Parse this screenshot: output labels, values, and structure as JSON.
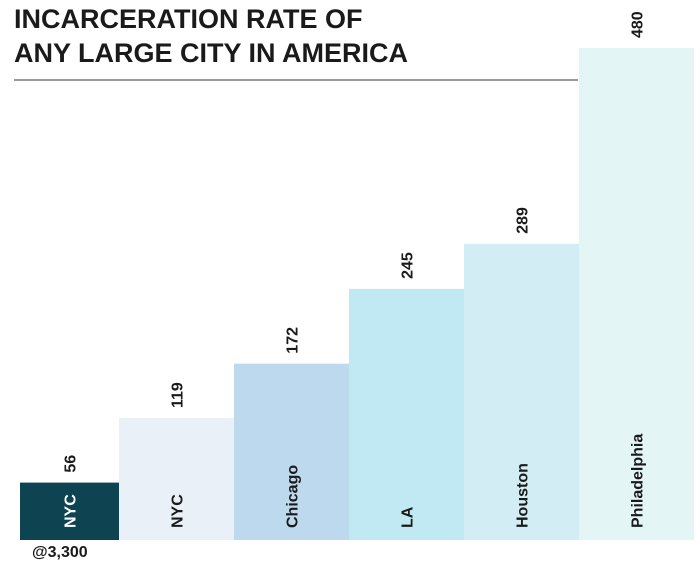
{
  "chart_data": {
    "type": "bar",
    "title_lines": [
      "INCARCERATION RATE OF",
      "ANY LARGE CITY IN AMERICA"
    ],
    "categories": [
      "NYC",
      "NYC",
      "Chicago",
      "LA",
      "Houston",
      "Philadelphia"
    ],
    "values": [
      56,
      119,
      172,
      245,
      289,
      480
    ],
    "colors": [
      "#0e4352",
      "#e9f0f8",
      "#bcd9ee",
      "#c0e9f3",
      "#d3edf5",
      "#e4f5f6"
    ],
    "annotation": "@3,300"
  }
}
